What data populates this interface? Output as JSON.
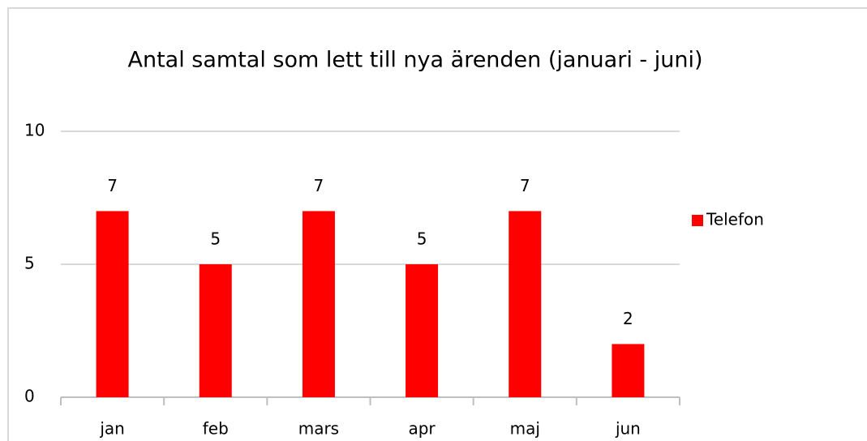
{
  "chart_data": {
    "type": "bar",
    "title": "Antal samtal som lett till nya ärenden (januari - juni)",
    "categories": [
      "jan",
      "feb",
      "mars",
      "apr",
      "maj",
      "jun"
    ],
    "series": [
      {
        "name": "Telefon",
        "color": "#ff0000",
        "values": [
          7,
          5,
          7,
          5,
          7,
          2
        ]
      }
    ],
    "ylim": [
      0,
      10
    ],
    "yticks": [
      0,
      5,
      10
    ],
    "grid": true,
    "legend": "right"
  }
}
